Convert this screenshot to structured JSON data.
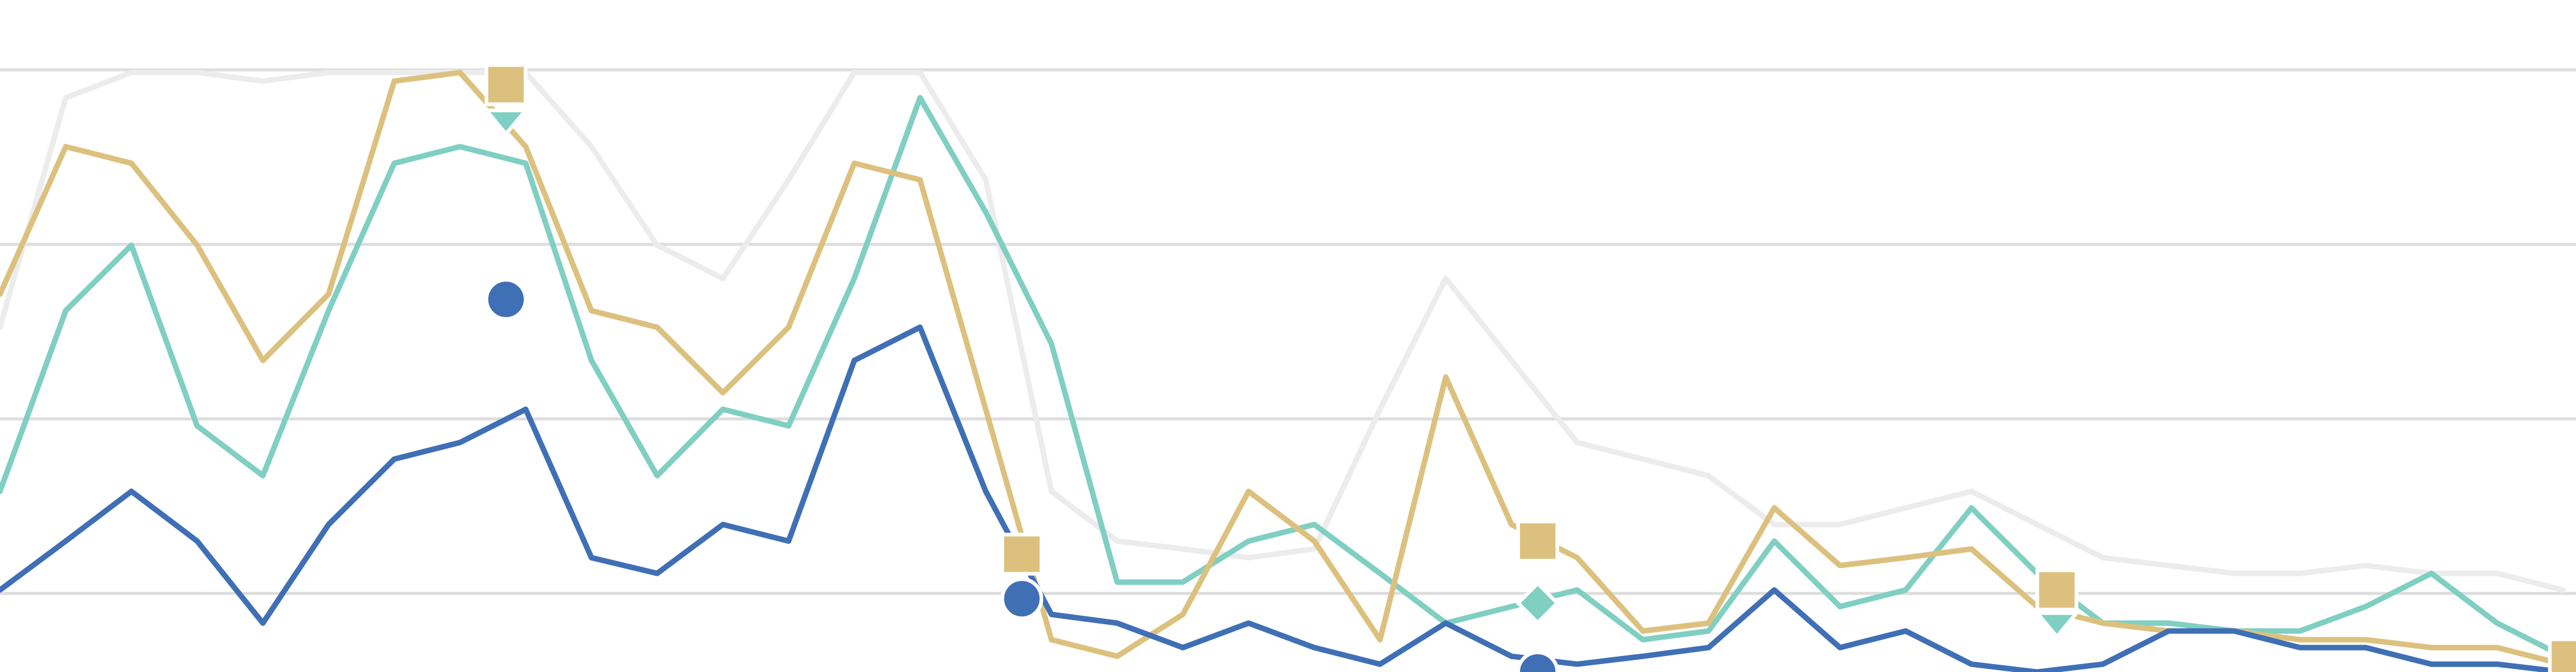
{
  "chart_data": {
    "type": "line",
    "x": [
      0,
      1,
      2,
      3,
      4,
      5,
      6,
      7,
      8,
      9,
      10,
      11,
      12,
      13,
      14,
      15,
      16,
      17,
      18,
      19,
      20,
      21,
      22,
      23,
      24,
      25,
      26,
      27,
      28,
      29,
      30,
      31,
      32,
      33,
      34,
      35,
      36,
      37,
      38,
      39
    ],
    "xlim": [
      0,
      39.2
    ],
    "ylim": [
      11,
      88
    ],
    "yticks": [
      20,
      40,
      60,
      80
    ],
    "grid": true,
    "series": [
      {
        "color": "#ececec",
        "values": [
          50.5,
          76.8,
          79.7,
          79.7,
          78.7,
          79.7,
          79.7,
          79.7,
          79.7,
          71.2,
          59.9,
          56.1,
          67.4,
          79.7,
          79.7,
          67.4,
          31.7,
          26.0,
          25.1,
          24.1,
          25.1,
          41.1,
          56.1,
          46.7,
          37.3,
          35.4,
          33.5,
          27.9,
          27.9,
          29.8,
          31.7,
          27.9,
          24.1,
          23.2,
          22.3,
          22.3,
          23.2,
          22.3,
          22.3,
          20.4
        ]
      },
      {
        "color": "#7fcfc2",
        "values": [
          31.7,
          52.4,
          59.9,
          39.2,
          33.5,
          52.4,
          69.3,
          71.2,
          69.3,
          46.7,
          33.5,
          41.1,
          39.2,
          56.1,
          76.8,
          63.7,
          48.6,
          21.3,
          21.3,
          26.0,
          27.9,
          22.3,
          16.6,
          18.5,
          20.4,
          14.7,
          15.7,
          26.0,
          18.5,
          20.4,
          29.8,
          22.3,
          16.6,
          16.6,
          15.7,
          15.7,
          18.5,
          22.3,
          16.6,
          12.8
        ],
        "markers": [
          {
            "x": 7.7,
            "y": 74.0,
            "shape": "triangle"
          },
          {
            "x": 23.4,
            "y": 18.9,
            "shape": "diamond"
          },
          {
            "x": 31.3,
            "y": 16.4,
            "shape": "triangle"
          }
        ]
      },
      {
        "color": "#dcc17e",
        "values": [
          54.3,
          71.2,
          69.3,
          59.9,
          46.7,
          54.3,
          78.7,
          79.7,
          71.2,
          52.4,
          50.5,
          43.0,
          50.5,
          69.3,
          67.4,
          41.1,
          14.7,
          12.8,
          17.6,
          31.7,
          26.0,
          14.7,
          44.8,
          27.9,
          24.1,
          15.7,
          16.6,
          29.8,
          23.2,
          24.1,
          25.1,
          18.5,
          16.6,
          15.7,
          15.7,
          14.7,
          14.7,
          13.8,
          13.8,
          11.9
        ],
        "markers": [
          {
            "x": 7.7,
            "y": 78.3,
            "shape": "square"
          },
          {
            "x": 15.55,
            "y": 24.5,
            "shape": "square"
          },
          {
            "x": 23.4,
            "y": 26.0,
            "shape": "square"
          },
          {
            "x": 31.3,
            "y": 20.4,
            "shape": "square"
          },
          {
            "x": 39.1,
            "y": 12.5,
            "shape": "square"
          }
        ]
      },
      {
        "color": "#3f6fb5",
        "values": [
          20.4,
          26.0,
          31.7,
          26.0,
          16.6,
          27.9,
          35.4,
          37.3,
          41.1,
          24.1,
          22.3,
          27.9,
          26.0,
          46.7,
          50.5,
          31.7,
          17.6,
          16.6,
          13.8,
          16.6,
          13.8,
          11.9,
          16.6,
          12.8,
          11.9,
          12.8,
          13.8,
          20.4,
          13.8,
          15.7,
          11.9,
          11.0,
          11.9,
          15.7,
          15.7,
          13.8,
          13.8,
          11.9,
          11.9,
          11.0
        ],
        "markers": [
          {
            "x": 7.7,
            "y": 53.7,
            "shape": "circle"
          },
          {
            "x": 15.55,
            "y": 19.4,
            "shape": "circle"
          },
          {
            "x": 23.4,
            "y": 11.0,
            "shape": "circle"
          }
        ]
      }
    ]
  }
}
